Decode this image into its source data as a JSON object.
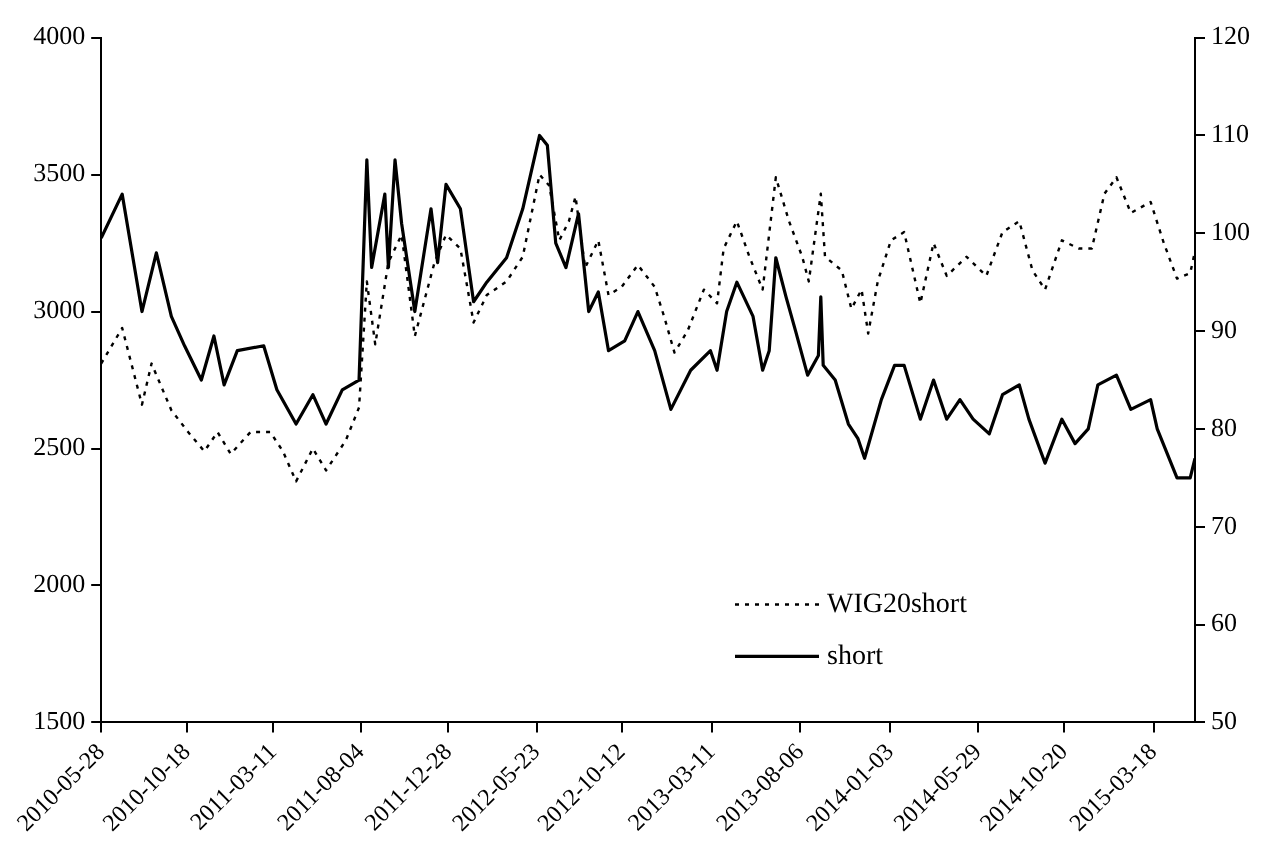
{
  "chart_data": {
    "type": "line",
    "xlim": [
      "2010-05-28",
      "2015-05-26"
    ],
    "xticks": [
      "2010-05-28",
      "2010-10-18",
      "2011-03-11",
      "2011-08-04",
      "2011-12-28",
      "2012-05-23",
      "2012-10-12",
      "2013-03-11",
      "2013-08-06",
      "2014-01-03",
      "2014-05-29",
      "2014-10-20",
      "2015-03-18"
    ],
    "ylim": [
      1500,
      4000
    ],
    "yticks": [
      1500,
      2000,
      2500,
      3000,
      3500,
      4000
    ],
    "y2lim": [
      50,
      120
    ],
    "y2ticks": [
      50,
      60,
      70,
      80,
      90,
      100,
      110,
      120
    ],
    "legend": "bottom right",
    "series": [
      {
        "name": "WIG20short",
        "color": "#000000",
        "line_style": "dotted",
        "axis": "y",
        "x": [
          "2010-05-28",
          "2010-07-02",
          "2010-08-04",
          "2010-08-20",
          "2010-09-22",
          "2010-10-20",
          "2010-11-16",
          "2010-12-08",
          "2010-12-30",
          "2011-02-01",
          "2011-03-06",
          "2011-03-27",
          "2011-04-18",
          "2011-05-16",
          "2011-06-07",
          "2011-07-10",
          "2011-08-01",
          "2011-08-14",
          "2011-08-28",
          "2011-09-19",
          "2011-10-11",
          "2011-11-02",
          "2011-12-05",
          "2011-12-24",
          "2012-01-17",
          "2012-02-08",
          "2012-03-01",
          "2012-04-03",
          "2012-04-30",
          "2012-05-28",
          "2012-06-13",
          "2012-06-30",
          "2012-07-16",
          "2012-07-27",
          "2012-08-12",
          "2012-09-03",
          "2012-09-20",
          "2012-10-12",
          "2012-11-08",
          "2012-12-06",
          "2012-12-22",
          "2013-01-08",
          "2013-01-30",
          "2013-02-26",
          "2013-03-20",
          "2013-03-31",
          "2013-04-22",
          "2013-05-13",
          "2013-06-04",
          "2013-06-26",
          "2013-07-18",
          "2013-08-09",
          "2013-08-20",
          "2013-09-09",
          "2013-09-16",
          "2013-10-14",
          "2013-10-30",
          "2013-11-16",
          "2013-11-27",
          "2013-12-13",
          "2014-01-04",
          "2014-01-26",
          "2014-02-22",
          "2014-03-16",
          "2014-04-07",
          "2014-05-10",
          "2014-06-12",
          "2014-07-09",
          "2014-08-06",
          "2014-08-28",
          "2014-09-18",
          "2014-10-16",
          "2014-11-13",
          "2014-12-05",
          "2014-12-26",
          "2015-01-15",
          "2015-02-08",
          "2015-03-13",
          "2015-04-04",
          "2015-04-26",
          "2015-05-18",
          "2015-05-26"
        ],
        "values": [
          2810,
          2940,
          2660,
          2810,
          2640,
          2560,
          2490,
          2560,
          2480,
          2560,
          2560,
          2490,
          2380,
          2500,
          2420,
          2530,
          2650,
          3110,
          2880,
          3180,
          3280,
          2910,
          3180,
          3280,
          3230,
          2960,
          3060,
          3110,
          3200,
          3500,
          3460,
          3260,
          3330,
          3420,
          3160,
          3260,
          3060,
          3090,
          3170,
          3090,
          2980,
          2850,
          2930,
          3080,
          3030,
          3230,
          3330,
          3200,
          3080,
          3490,
          3330,
          3200,
          3110,
          3430,
          3200,
          3150,
          3010,
          3080,
          2920,
          3110,
          3260,
          3290,
          3030,
          3250,
          3130,
          3200,
          3130,
          3290,
          3330,
          3150,
          3080,
          3260,
          3230,
          3230,
          3430,
          3490,
          3360,
          3400,
          3250,
          3120,
          3140,
          3220
        ]
      },
      {
        "name": "short",
        "color": "#000000",
        "line_style": "solid",
        "axis": "y2",
        "x": [
          "2010-05-28",
          "2010-07-02",
          "2010-08-04",
          "2010-08-28",
          "2010-09-22",
          "2010-10-14",
          "2010-11-11",
          "2010-12-02",
          "2010-12-19",
          "2011-01-10",
          "2011-02-23",
          "2011-03-17",
          "2011-04-18",
          "2011-05-16",
          "2011-06-07",
          "2011-07-04",
          "2011-08-01",
          "2011-08-14",
          "2011-08-22",
          "2011-09-13",
          "2011-09-19",
          "2011-09-30",
          "2011-10-11",
          "2011-11-02",
          "2011-11-29",
          "2011-12-10",
          "2011-12-24",
          "2012-01-17",
          "2012-02-08",
          "2012-03-01",
          "2012-04-03",
          "2012-04-30",
          "2012-05-28",
          "2012-06-10",
          "2012-06-24",
          "2012-07-11",
          "2012-08-01",
          "2012-08-18",
          "2012-09-03",
          "2012-09-20",
          "2012-10-17",
          "2012-11-08",
          "2012-12-06",
          "2013-01-02",
          "2013-02-04",
          "2013-03-09",
          "2013-03-20",
          "2013-04-05",
          "2013-04-22",
          "2013-05-19",
          "2013-06-04",
          "2013-06-15",
          "2013-06-26",
          "2013-07-13",
          "2013-07-29",
          "2013-08-18",
          "2013-09-05",
          "2013-09-09",
          "2013-09-13",
          "2013-10-03",
          "2013-10-25",
          "2013-11-10",
          "2013-11-21",
          "2013-12-19",
          "2014-01-10",
          "2014-01-26",
          "2014-02-22",
          "2014-03-16",
          "2014-04-07",
          "2014-04-29",
          "2014-05-21",
          "2014-06-17",
          "2014-07-09",
          "2014-08-06",
          "2014-08-22",
          "2014-09-18",
          "2014-10-16",
          "2014-11-07",
          "2014-11-29",
          "2014-12-15",
          "2015-01-15",
          "2015-02-08",
          "2015-03-13",
          "2015-03-24",
          "2015-04-26",
          "2015-05-18",
          "2015-05-26"
        ],
        "values": [
          99.5,
          104,
          92,
          98,
          91.5,
          88.5,
          85,
          89.5,
          84.5,
          88,
          88.5,
          84,
          80.5,
          83.5,
          80.5,
          84,
          85,
          107.5,
          96.5,
          104,
          96.5,
          107.5,
          101,
          92,
          102.5,
          97,
          105,
          102.5,
          93,
          95,
          97.5,
          102.5,
          110,
          109,
          99,
          96.5,
          102,
          92,
          94,
          88,
          89,
          92,
          88,
          82,
          86,
          88,
          86,
          92,
          95,
          91.5,
          86,
          88,
          97.5,
          93.5,
          90,
          85.5,
          87.5,
          93.5,
          86.5,
          85,
          80.5,
          79,
          77,
          83,
          86.5,
          86.5,
          81,
          85,
          81,
          83,
          81,
          79.5,
          83.5,
          84.5,
          81,
          76.5,
          81,
          78.5,
          80,
          84.5,
          85.5,
          82,
          83,
          80,
          75,
          75,
          77
        ]
      }
    ]
  }
}
